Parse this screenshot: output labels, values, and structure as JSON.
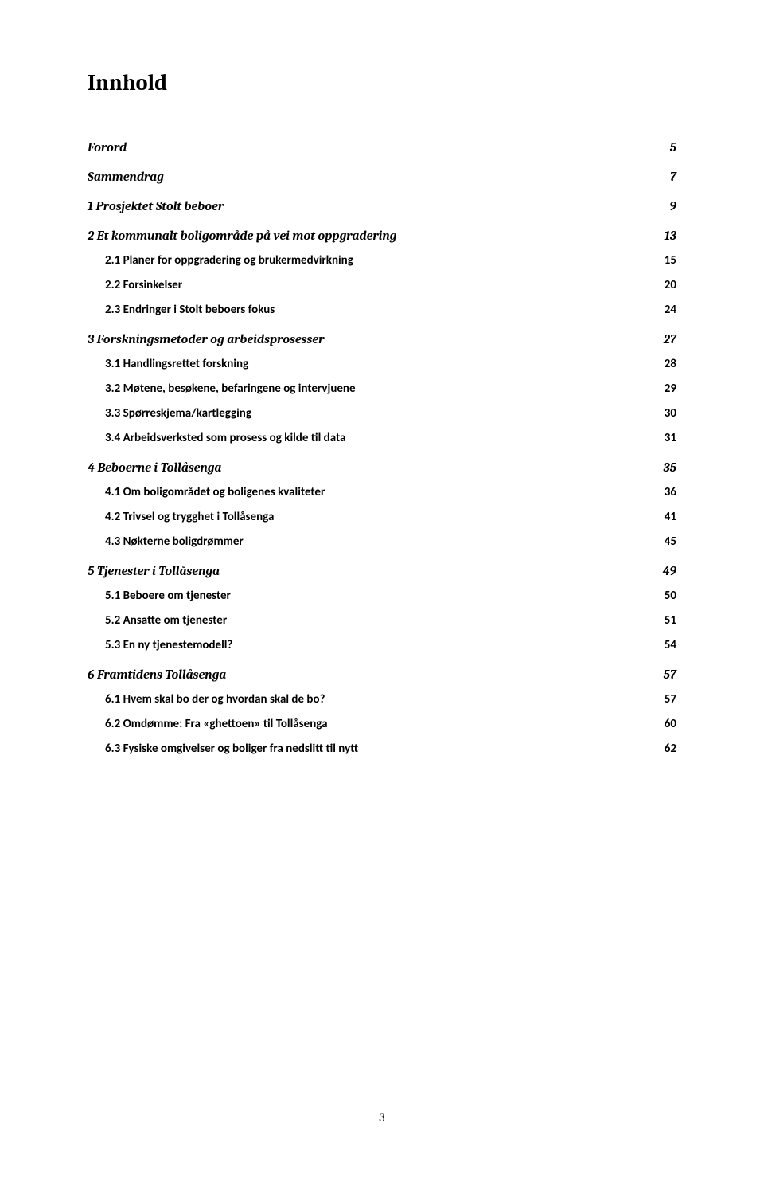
{
  "doc": {
    "title": "Innhold",
    "page_number": "3",
    "fonts": {
      "title_size_pt": 22,
      "lvl1_size_pt": 12,
      "lvl2_size_pt": 11,
      "body_family": "Cambria, serif",
      "lvl2_family": "Calibri, sans-serif"
    },
    "colors": {
      "text": "#000000",
      "background": "#ffffff"
    },
    "toc": [
      {
        "level": 1,
        "label": "Forord",
        "page": "5"
      },
      {
        "level": 1,
        "label": "Sammendrag",
        "page": "7"
      },
      {
        "level": 1,
        "label": "1 Prosjektet Stolt beboer",
        "page": "9"
      },
      {
        "level": 1,
        "label": "2 Et kommunalt boligområde på vei mot oppgradering",
        "page": "13"
      },
      {
        "level": 2,
        "label": "2.1 Planer for oppgradering og brukermedvirkning",
        "page": "15"
      },
      {
        "level": 2,
        "label": "2.2 Forsinkelser",
        "page": "20"
      },
      {
        "level": 2,
        "label": "2.3 Endringer i Stolt beboers fokus",
        "page": "24"
      },
      {
        "level": 1,
        "label": "3 Forskningsmetoder og arbeidsprosesser",
        "page": "27"
      },
      {
        "level": 2,
        "label": "3.1 Handlingsrettet forskning",
        "page": "28"
      },
      {
        "level": 2,
        "label": "3.2 Møtene, besøkene, befaringene og intervjuene",
        "page": "29"
      },
      {
        "level": 2,
        "label": "3.3 Spørreskjema/kartlegging",
        "page": "30"
      },
      {
        "level": 2,
        "label": "3.4 Arbeidsverksted som prosess og kilde til data",
        "page": "31"
      },
      {
        "level": 1,
        "label": "4 Beboerne i Tollåsenga",
        "page": "35"
      },
      {
        "level": 2,
        "label": "4.1 Om boligområdet og boligenes kvaliteter",
        "page": "36"
      },
      {
        "level": 2,
        "label": "4.2 Trivsel og trygghet i Tollåsenga",
        "page": "41"
      },
      {
        "level": 2,
        "label": "4.3 Nøkterne boligdrømmer",
        "page": "45"
      },
      {
        "level": 1,
        "label": "5 Tjenester i Tollåsenga",
        "page": "49"
      },
      {
        "level": 2,
        "label": "5.1 Beboere om tjenester",
        "page": "50"
      },
      {
        "level": 2,
        "label": "5.2 Ansatte om tjenester",
        "page": "51"
      },
      {
        "level": 2,
        "label": "5.3 En ny tjenestemodell?",
        "page": "54"
      },
      {
        "level": 1,
        "label": "6 Framtidens Tollåsenga",
        "page": "57"
      },
      {
        "level": 2,
        "label": "6.1 Hvem skal bo der og hvordan skal de bo?",
        "page": "57"
      },
      {
        "level": 2,
        "label": "6.2 Omdømme: Fra «ghettoen» til Tollåsenga",
        "page": "60"
      },
      {
        "level": 2,
        "label": "6.3 Fysiske omgivelser og boliger fra nedslitt til nytt",
        "page": "62"
      }
    ]
  }
}
